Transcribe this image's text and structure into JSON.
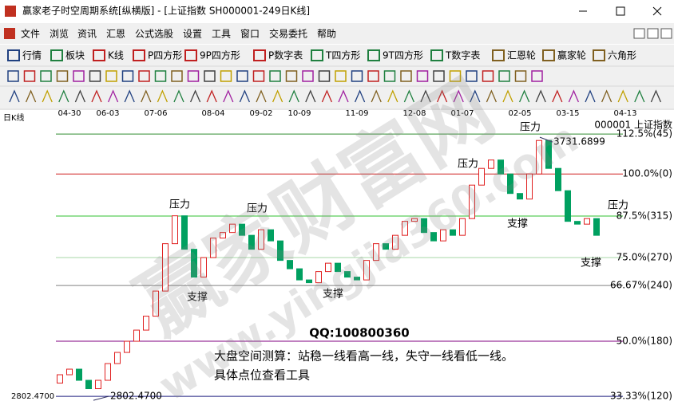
{
  "window": {
    "title": "赢家老子时空周期系统[纵横版] - [上证指数  SH000001-249日K线]"
  },
  "menu": {
    "items": [
      "文件",
      "浏览",
      "资讯",
      "汇恩",
      "公式选股",
      "设置",
      "工具",
      "窗口",
      "交易委托",
      "帮助"
    ]
  },
  "toolbar": {
    "items": [
      "行情",
      "板块",
      "K线",
      "P四方形",
      "9P四方形",
      "P数字表",
      "T四方形",
      "9T四方形",
      "T数字表",
      "汇恩轮",
      "赢家轮",
      "六角形"
    ]
  },
  "watermark": {
    "text": "赢家财富网",
    "url": "www.yingjia360.com"
  },
  "chart_data": {
    "type": "candlestick",
    "period_label": "日K线",
    "symbol_label": "000001  上证指数",
    "categories": [
      null,
      "04-30",
      null,
      null,
      null,
      "06-03",
      null,
      null,
      null,
      null,
      "07-06",
      null,
      null,
      null,
      null,
      null,
      "08-04",
      null,
      null,
      null,
      null,
      "09-02",
      null,
      null,
      null,
      "10-09",
      null,
      null,
      null,
      null,
      null,
      "11-09",
      null,
      null,
      null,
      null,
      null,
      "12-08",
      null,
      null,
      null,
      null,
      "01-07",
      null,
      null,
      null,
      null,
      null,
      "02-05",
      null,
      null,
      null,
      null,
      "03-15",
      null,
      null,
      null,
      null,
      null,
      "04-13"
    ],
    "open": [
      2850,
      2880,
      2900,
      2860,
      2830,
      2860,
      2920,
      2960,
      3000,
      3040,
      3090,
      3180,
      3350,
      3450,
      3330,
      3230,
      3300,
      3370,
      3390,
      3420,
      3380,
      3330,
      3400,
      3360,
      3290,
      3260,
      3220,
      3210,
      3250,
      3280,
      3250,
      3230,
      3220,
      3290,
      3350,
      3330,
      3380,
      3430,
      3440,
      3390,
      3360,
      3400,
      3380,
      3440,
      3560,
      3620,
      3650,
      3600,
      3530,
      3510,
      3600,
      3720,
      3620,
      3540,
      3430,
      3420,
      3440,
      null,
      null,
      null
    ],
    "close": [
      2880,
      2900,
      2860,
      2830,
      2860,
      2920,
      2960,
      3000,
      3040,
      3090,
      3180,
      3350,
      3450,
      3330,
      3230,
      3300,
      3370,
      3390,
      3420,
      3380,
      3330,
      3400,
      3360,
      3290,
      3260,
      3220,
      3210,
      3250,
      3280,
      3250,
      3230,
      3220,
      3290,
      3350,
      3330,
      3380,
      3430,
      3440,
      3390,
      3360,
      3400,
      3380,
      3440,
      3560,
      3620,
      3650,
      3600,
      3530,
      3510,
      3600,
      3720,
      3620,
      3540,
      3430,
      3420,
      3440,
      3380,
      null,
      null,
      null
    ],
    "up_color": "#e02020",
    "down_color": "#00a060",
    "ylim": [
      2780,
      3795
    ],
    "levels": [
      {
        "label": "112.5%(45)",
        "value": 3743,
        "color": "#2e8b2e"
      },
      {
        "label": "100.0%(0)",
        "value": 3600,
        "color": "#d02020"
      },
      {
        "label": "87.5%(315)",
        "value": 3449,
        "color": "#30c030"
      },
      {
        "label": "75.0%(270)",
        "value": 3300,
        "color": "#a8d8a8"
      },
      {
        "label": "66.67%(240)",
        "value": 3200,
        "color": "#808080"
      },
      {
        "label": "50.0%(180)",
        "value": 3000,
        "color": "#800080"
      },
      {
        "label": "33.33%(120)",
        "value": 2802.47,
        "color": "#202080"
      }
    ],
    "high_label": {
      "value": 3731.6899,
      "label": "3731.6899"
    },
    "low_label": {
      "value": 2802.47,
      "label": "2802.4700"
    },
    "annotations": [
      {
        "text": "压力",
        "color": "#20b0c8"
      },
      {
        "text": "压力",
        "color": "#20b0c8"
      },
      {
        "text": "压力",
        "color": "#20b0c8"
      },
      {
        "text": "压力",
        "color": "#20b0c8"
      },
      {
        "text": "压力",
        "color": "#20b0c8"
      },
      {
        "text": "支撑",
        "color": "#a020c0"
      },
      {
        "text": "支撑",
        "color": "#a020c0"
      },
      {
        "text": "支撑",
        "color": "#a020c0"
      },
      {
        "text": "支撑",
        "color": "#a020c0"
      },
      {
        "text": "QQ:100800360",
        "color": "#909090"
      },
      {
        "text": "大盘空间测算：站稳一线看高一线，失守一线看低一线。",
        "color": "#e020c0"
      },
      {
        "text": "具体点位查看工具",
        "color": "#e020c0"
      }
    ]
  }
}
